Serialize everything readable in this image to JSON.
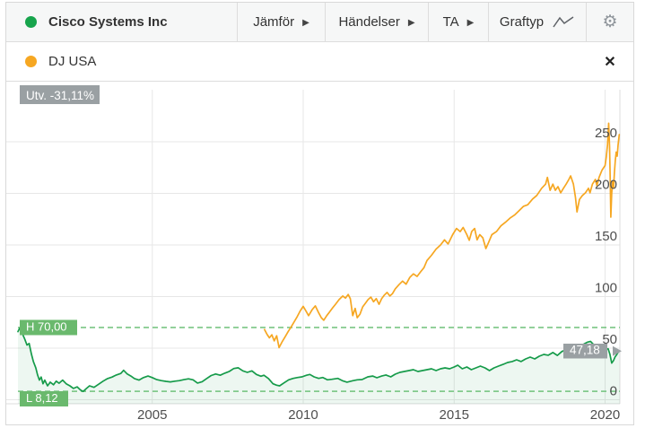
{
  "toolbar": {
    "instrument": {
      "name": "Cisco Systems Inc",
      "dot_color": "#17a44c"
    },
    "menus": [
      {
        "label": "Jämför"
      },
      {
        "label": "Händelser"
      },
      {
        "label": "TA"
      },
      {
        "label": "Graftyp"
      }
    ],
    "arrow_glyph": "▶",
    "gear_glyph": "⚙"
  },
  "legend": {
    "label": "DJ USA",
    "dot_color": "#f6a722",
    "close_glyph": "✕"
  },
  "chart": {
    "performance_badge": "Utv. -31,11%",
    "high_badge": "H 70,00",
    "low_badge": "L 8,12",
    "last_badge": "47,18",
    "high_value": 70.0,
    "low_value": 8.12,
    "last_value": 47.18,
    "badge_gray": "#9aa0a3",
    "badge_green": "#6ab96d",
    "dashed_line_color": "#82c98c",
    "grid_color": "#e7e7e7",
    "axis_text_color": "#4e4e4e"
  },
  "chart_data": {
    "type": "line",
    "title": "",
    "xlabel": "",
    "ylabel": "",
    "x_ticks": [
      2005,
      2010,
      2015,
      2020
    ],
    "y_ticks": [
      0,
      50,
      100,
      150,
      200,
      250
    ],
    "x_range": [
      2000.55,
      2020.49
    ],
    "y_range": [
      0,
      305
    ],
    "grid": true,
    "legend_position": "top",
    "series": [
      {
        "name": "Cisco Systems Inc",
        "color": "#169b4a",
        "fill": "rgba(22,155,74,0.08)",
        "points": [
          [
            2000.55,
            66
          ],
          [
            2000.61,
            69.5
          ],
          [
            2000.7,
            64
          ],
          [
            2000.78,
            58.5
          ],
          [
            2000.85,
            53
          ],
          [
            2000.92,
            54.5
          ],
          [
            2001.0,
            44
          ],
          [
            2001.06,
            37
          ],
          [
            2001.14,
            31
          ],
          [
            2001.2,
            24
          ],
          [
            2001.26,
            19
          ],
          [
            2001.32,
            22
          ],
          [
            2001.38,
            15.5
          ],
          [
            2001.44,
            19
          ],
          [
            2001.53,
            13.5
          ],
          [
            2001.62,
            17
          ],
          [
            2001.73,
            14.5
          ],
          [
            2001.82,
            18
          ],
          [
            2001.91,
            16
          ],
          [
            2002.03,
            19
          ],
          [
            2002.15,
            15.5
          ],
          [
            2002.27,
            13.5
          ],
          [
            2002.39,
            11
          ],
          [
            2002.51,
            12.5
          ],
          [
            2002.62,
            9.5
          ],
          [
            2002.71,
            8.12
          ],
          [
            2002.82,
            11
          ],
          [
            2002.92,
            13.5
          ],
          [
            2003.07,
            12
          ],
          [
            2003.22,
            15
          ],
          [
            2003.37,
            18
          ],
          [
            2003.52,
            20.5
          ],
          [
            2003.67,
            22
          ],
          [
            2003.81,
            24
          ],
          [
            2003.96,
            25.5
          ],
          [
            2004.05,
            28.5
          ],
          [
            2004.17,
            25
          ],
          [
            2004.29,
            23
          ],
          [
            2004.41,
            20.5
          ],
          [
            2004.56,
            19
          ],
          [
            2004.71,
            21.5
          ],
          [
            2004.86,
            23
          ],
          [
            2005.0,
            21.5
          ],
          [
            2005.15,
            19.5
          ],
          [
            2005.3,
            18.5
          ],
          [
            2005.45,
            17.8
          ],
          [
            2005.6,
            17.3
          ],
          [
            2005.75,
            18
          ],
          [
            2005.9,
            18.5
          ],
          [
            2006.05,
            19.5
          ],
          [
            2006.2,
            20.3
          ],
          [
            2006.35,
            19.3
          ],
          [
            2006.5,
            16.2
          ],
          [
            2006.65,
            17.5
          ],
          [
            2006.8,
            20.5
          ],
          [
            2006.95,
            23.5
          ],
          [
            2007.1,
            25
          ],
          [
            2007.25,
            23.7
          ],
          [
            2007.4,
            25.7
          ],
          [
            2007.55,
            27.4
          ],
          [
            2007.7,
            30.3
          ],
          [
            2007.85,
            31
          ],
          [
            2008.0,
            28
          ],
          [
            2008.15,
            26.5
          ],
          [
            2008.3,
            28
          ],
          [
            2008.45,
            24.5
          ],
          [
            2008.6,
            22.8
          ],
          [
            2008.7,
            23.7
          ],
          [
            2008.85,
            20.5
          ],
          [
            2009.0,
            15.5
          ],
          [
            2009.12,
            14.1
          ],
          [
            2009.22,
            13.5
          ],
          [
            2009.37,
            16.4
          ],
          [
            2009.52,
            19.3
          ],
          [
            2009.67,
            20.7
          ],
          [
            2009.82,
            21.6
          ],
          [
            2009.96,
            22.2
          ],
          [
            2010.11,
            23.7
          ],
          [
            2010.22,
            24.5
          ],
          [
            2010.36,
            22.2
          ],
          [
            2010.51,
            20.7
          ],
          [
            2010.65,
            21.6
          ],
          [
            2010.8,
            19.3
          ],
          [
            2010.95,
            19.8
          ],
          [
            2011.15,
            20.7
          ],
          [
            2011.3,
            18.4
          ],
          [
            2011.45,
            17
          ],
          [
            2011.64,
            18.4
          ],
          [
            2011.79,
            19.3
          ],
          [
            2011.95,
            19.6
          ],
          [
            2012.14,
            22.2
          ],
          [
            2012.3,
            23
          ],
          [
            2012.44,
            21.3
          ],
          [
            2012.6,
            23
          ],
          [
            2012.74,
            24
          ],
          [
            2012.9,
            22.2
          ],
          [
            2013.05,
            24.8
          ],
          [
            2013.2,
            26.5
          ],
          [
            2013.35,
            27.4
          ],
          [
            2013.5,
            28.3
          ],
          [
            2013.65,
            29.1
          ],
          [
            2013.8,
            27.4
          ],
          [
            2013.95,
            28.3
          ],
          [
            2014.1,
            29.1
          ],
          [
            2014.25,
            30
          ],
          [
            2014.4,
            28.3
          ],
          [
            2014.55,
            30
          ],
          [
            2014.7,
            30.9
          ],
          [
            2014.85,
            30
          ],
          [
            2015.0,
            31.7
          ],
          [
            2015.12,
            33.5
          ],
          [
            2015.27,
            30
          ],
          [
            2015.42,
            31.7
          ],
          [
            2015.57,
            29.1
          ],
          [
            2015.72,
            30.9
          ],
          [
            2015.87,
            32.6
          ],
          [
            2016.02,
            30.9
          ],
          [
            2016.17,
            28.3
          ],
          [
            2016.32,
            30.9
          ],
          [
            2016.47,
            32.6
          ],
          [
            2016.62,
            34.3
          ],
          [
            2016.77,
            36.1
          ],
          [
            2016.92,
            37
          ],
          [
            2017.07,
            38.7
          ],
          [
            2017.22,
            37
          ],
          [
            2017.37,
            39.6
          ],
          [
            2017.52,
            41.3
          ],
          [
            2017.67,
            39.6
          ],
          [
            2017.82,
            42.2
          ],
          [
            2017.97,
            43.9
          ],
          [
            2018.12,
            43.1
          ],
          [
            2018.27,
            45.7
          ],
          [
            2018.42,
            43
          ],
          [
            2018.57,
            46.8
          ],
          [
            2018.72,
            48.5
          ],
          [
            2018.87,
            45
          ],
          [
            2019.0,
            43.5
          ],
          [
            2019.1,
            47
          ],
          [
            2019.2,
            50.5
          ],
          [
            2019.3,
            54
          ],
          [
            2019.42,
            55.8
          ],
          [
            2019.52,
            56.5
          ],
          [
            2019.62,
            53.5
          ],
          [
            2019.72,
            50
          ],
          [
            2019.82,
            47.5
          ],
          [
            2019.92,
            46
          ],
          [
            2020.02,
            48.5
          ],
          [
            2020.1,
            49.5
          ],
          [
            2020.16,
            44
          ],
          [
            2020.22,
            35.5
          ],
          [
            2020.28,
            38
          ],
          [
            2020.33,
            41.5
          ],
          [
            2020.38,
            43.5
          ],
          [
            2020.42,
            45.5
          ],
          [
            2020.47,
            47.18
          ]
        ]
      },
      {
        "name": "DJ USA",
        "color": "#f6a722",
        "fill": null,
        "points": [
          [
            2008.72,
            68
          ],
          [
            2008.8,
            63.5
          ],
          [
            2008.88,
            60
          ],
          [
            2008.96,
            63
          ],
          [
            2009.04,
            57
          ],
          [
            2009.12,
            62
          ],
          [
            2009.2,
            50.5
          ],
          [
            2009.3,
            56
          ],
          [
            2009.4,
            61
          ],
          [
            2009.5,
            66
          ],
          [
            2009.6,
            70.5
          ],
          [
            2009.7,
            75.5
          ],
          [
            2009.8,
            80.5
          ],
          [
            2009.9,
            86
          ],
          [
            2010.0,
            90.5
          ],
          [
            2010.1,
            85.5
          ],
          [
            2010.18,
            81.5
          ],
          [
            2010.3,
            87.5
          ],
          [
            2010.4,
            91
          ],
          [
            2010.5,
            85
          ],
          [
            2010.6,
            79.5
          ],
          [
            2010.68,
            77
          ],
          [
            2010.78,
            81.5
          ],
          [
            2010.87,
            85
          ],
          [
            2010.96,
            88.5
          ],
          [
            2011.07,
            92.5
          ],
          [
            2011.19,
            97
          ],
          [
            2011.31,
            100.5
          ],
          [
            2011.4,
            98.5
          ],
          [
            2011.49,
            102
          ],
          [
            2011.56,
            98
          ],
          [
            2011.64,
            81.5
          ],
          [
            2011.72,
            88.5
          ],
          [
            2011.79,
            79.5
          ],
          [
            2011.88,
            83
          ],
          [
            2011.97,
            90
          ],
          [
            2012.06,
            93.5
          ],
          [
            2012.15,
            97
          ],
          [
            2012.24,
            99.5
          ],
          [
            2012.33,
            95
          ],
          [
            2012.42,
            98
          ],
          [
            2012.51,
            92.5
          ],
          [
            2012.6,
            98
          ],
          [
            2012.69,
            101.5
          ],
          [
            2012.78,
            104
          ],
          [
            2012.87,
            100.5
          ],
          [
            2012.96,
            103
          ],
          [
            2013.05,
            107.5
          ],
          [
            2013.17,
            111.5
          ],
          [
            2013.29,
            115
          ],
          [
            2013.41,
            112
          ],
          [
            2013.53,
            118.5
          ],
          [
            2013.65,
            122
          ],
          [
            2013.77,
            119.5
          ],
          [
            2013.89,
            124
          ],
          [
            2014.0,
            128
          ],
          [
            2014.1,
            135
          ],
          [
            2014.25,
            140
          ],
          [
            2014.4,
            146
          ],
          [
            2014.55,
            150
          ],
          [
            2014.68,
            155
          ],
          [
            2014.8,
            151
          ],
          [
            2014.95,
            160
          ],
          [
            2015.08,
            166
          ],
          [
            2015.2,
            163
          ],
          [
            2015.3,
            167
          ],
          [
            2015.42,
            160
          ],
          [
            2015.5,
            154.5
          ],
          [
            2015.58,
            163
          ],
          [
            2015.68,
            166
          ],
          [
            2015.76,
            155
          ],
          [
            2015.85,
            160
          ],
          [
            2015.95,
            157
          ],
          [
            2016.05,
            146.5
          ],
          [
            2016.12,
            151
          ],
          [
            2016.25,
            160
          ],
          [
            2016.4,
            163
          ],
          [
            2016.55,
            168.5
          ],
          [
            2016.7,
            172
          ],
          [
            2016.85,
            176
          ],
          [
            2017.0,
            179
          ],
          [
            2017.14,
            183
          ],
          [
            2017.3,
            187.5
          ],
          [
            2017.44,
            189
          ],
          [
            2017.6,
            194.5
          ],
          [
            2017.74,
            198
          ],
          [
            2017.9,
            205
          ],
          [
            2018.03,
            209
          ],
          [
            2018.09,
            215.5
          ],
          [
            2018.18,
            203
          ],
          [
            2018.27,
            209
          ],
          [
            2018.35,
            203
          ],
          [
            2018.44,
            206.5
          ],
          [
            2018.53,
            200.5
          ],
          [
            2018.62,
            205
          ],
          [
            2018.71,
            209
          ],
          [
            2018.8,
            213.5
          ],
          [
            2018.86,
            217
          ],
          [
            2018.95,
            209
          ],
          [
            2019.02,
            196
          ],
          [
            2019.07,
            182
          ],
          [
            2019.15,
            194
          ],
          [
            2019.25,
            198
          ],
          [
            2019.35,
            200.5
          ],
          [
            2019.45,
            205
          ],
          [
            2019.5,
            200.5
          ],
          [
            2019.58,
            209
          ],
          [
            2019.68,
            213.5
          ],
          [
            2019.73,
            207.5
          ],
          [
            2019.8,
            215.5
          ],
          [
            2019.9,
            222.5
          ],
          [
            2020.0,
            227
          ],
          [
            2020.04,
            235
          ],
          [
            2020.08,
            247
          ],
          [
            2020.12,
            268
          ],
          [
            2020.15,
            245
          ],
          [
            2020.17,
            215
          ],
          [
            2020.19,
            177
          ],
          [
            2020.22,
            200
          ],
          [
            2020.25,
            212
          ],
          [
            2020.28,
            205
          ],
          [
            2020.31,
            220
          ],
          [
            2020.34,
            232
          ],
          [
            2020.37,
            240
          ],
          [
            2020.4,
            236
          ],
          [
            2020.43,
            247
          ],
          [
            2020.47,
            257
          ]
        ]
      }
    ]
  }
}
